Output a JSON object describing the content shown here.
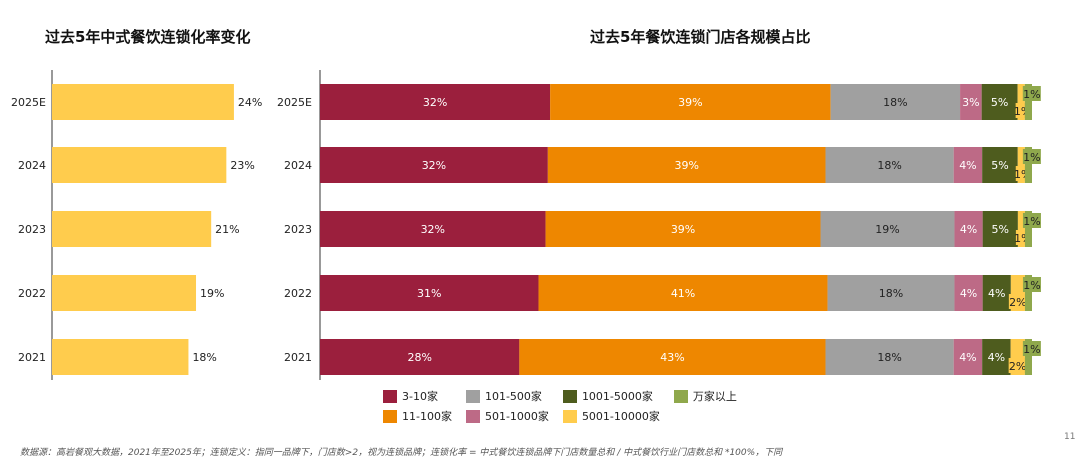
{
  "chart_data": [
    {
      "type": "bar",
      "orientation": "horizontal",
      "title": "过去5年中式餐饮连锁化率变化",
      "categories": [
        "2025E",
        "2024",
        "2023",
        "2022",
        "2021"
      ],
      "values": [
        24,
        23,
        21,
        19,
        18
      ],
      "labels": [
        "24%",
        "23%",
        "21%",
        "19%",
        "18%"
      ],
      "color": "#FFCC4D"
    },
    {
      "type": "bar",
      "stacked": true,
      "orientation": "horizontal",
      "title": "过去5年餐饮连锁门店各规模占比",
      "categories": [
        "2025E",
        "2024",
        "2023",
        "2022",
        "2021"
      ],
      "series": [
        {
          "name": "3-10家",
          "color": "#9B1F3D",
          "values": [
            32,
            32,
            32,
            31,
            28
          ]
        },
        {
          "name": "11-100家",
          "color": "#EE8700",
          "values": [
            39,
            39,
            39,
            41,
            43
          ]
        },
        {
          "name": "101-500家",
          "color": "#A0A0A0",
          "values": [
            18,
            18,
            19,
            18,
            18
          ]
        },
        {
          "name": "501-1000家",
          "color": "#BD6A86",
          "values": [
            3,
            4,
            4,
            4,
            4
          ]
        },
        {
          "name": "1001-5000家",
          "color": "#4E5C1E",
          "values": [
            5,
            5,
            5,
            4,
            4
          ]
        },
        {
          "name": "5001-10000家",
          "color": "#FFCC4D",
          "values": [
            1,
            1,
            1,
            2,
            2
          ]
        },
        {
          "name": "万家以上",
          "color": "#8FA84C",
          "values": [
            1,
            1,
            1,
            1,
            1
          ]
        }
      ],
      "legend_order": [
        0,
        2,
        4,
        6,
        1,
        3,
        5
      ],
      "legend_position": "bottom"
    }
  ],
  "footnote": "数据源：高岩餐观大数据，2021年至2025年；连锁定义：指同一品牌下，门店数>2，视为连锁品牌；连锁化率 = 中式餐饮连锁品牌下门店数量总和 / 中式餐饮行业门店数总和 *100%，下同",
  "page_number": "11"
}
